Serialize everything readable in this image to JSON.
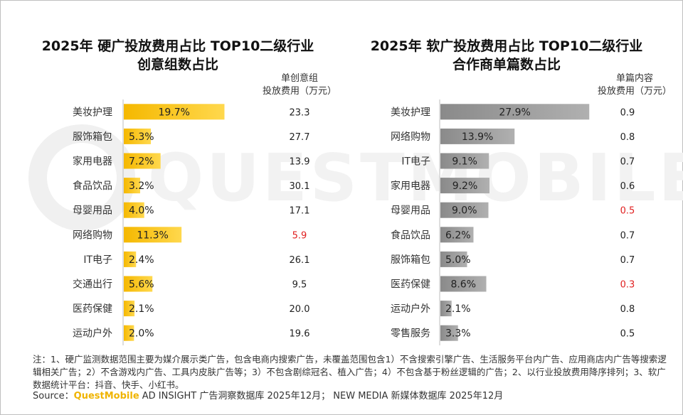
{
  "watermark": {
    "text": "QUESTMOBILE"
  },
  "left_panel": {
    "title_line1": "2025年 硬广投放费用占比 TOP10二级行业",
    "title_line2": "创意组数占比",
    "col_header_line1": "单创意组",
    "col_header_line2": "投放费用（万元）"
  },
  "right_panel": {
    "title_line1": "2025年 软广投放费用占比 TOP10二级行业",
    "title_line2": "合作商单篇数占比",
    "col_header_line1": "单篇内容",
    "col_header_line2": "投放费用（万元）"
  },
  "chart_data": [
    {
      "type": "bar",
      "orientation": "horizontal",
      "categories": [
        "美妆护理",
        "服饰箱包",
        "家用电器",
        "食品饮品",
        "母婴用品",
        "网络购物",
        "IT电子",
        "交通出行",
        "医药保健",
        "运动户外"
      ],
      "values": [
        19.7,
        5.3,
        7.2,
        3.2,
        4.0,
        11.3,
        2.4,
        5.6,
        2.1,
        2.0
      ],
      "value_labels": [
        "19.7%",
        "5.3%",
        "7.2%",
        "3.2%",
        "4.0%",
        "11.3%",
        "2.4%",
        "5.6%",
        "2.1%",
        "2.0%"
      ],
      "unit": "%",
      "xlim": [
        0,
        22
      ],
      "bar_color": "#f5b800",
      "side_values": [
        "23.3",
        "27.7",
        "13.9",
        "30.1",
        "17.1",
        "5.9",
        "26.1",
        "9.5",
        "20.0",
        "19.6"
      ],
      "side_highlight_index": [
        5
      ],
      "highlight_color": "#e02020"
    },
    {
      "type": "bar",
      "orientation": "horizontal",
      "categories": [
        "美妆护理",
        "网络购物",
        "IT电子",
        "家用电器",
        "母婴用品",
        "食品饮品",
        "服饰箱包",
        "医药保健",
        "运动户外",
        "零售服务"
      ],
      "values": [
        27.9,
        13.9,
        9.1,
        9.2,
        9.0,
        6.2,
        5.0,
        8.6,
        2.1,
        3.3
      ],
      "value_labels": [
        "27.9%",
        "13.9%",
        "9.1%",
        "9.2%",
        "9.0%",
        "6.2%",
        "5.0%",
        "8.6%",
        "2.1%",
        "3.3%"
      ],
      "unit": "%",
      "xlim": [
        0,
        30
      ],
      "bar_color": "#8a8a8a",
      "side_values": [
        "0.9",
        "0.8",
        "0.7",
        "0.6",
        "0.5",
        "0.7",
        "0.7",
        "0.3",
        "0.8",
        "0.5"
      ],
      "side_highlight_index": [
        4,
        7
      ],
      "highlight_color": "#e02020"
    }
  ],
  "footer": {
    "note": "注：1、硬广监测数据范围主要为媒介展示类广告，包含电商内搜索广告，未覆盖范围包含1）不含搜索引擎广告、生活服务平台内广告、应用商店内广告等搜索逻辑相关广告；2）不含游戏内广告、工具内皮肤广告等；3）不包含剧综冠名、植入广告；4）不包含基于粉丝逻辑的广告；2、以行业投放费用降序排列；3、软广数据统计平台：抖音、快手、小红书。",
    "source_prefix": "Source：",
    "source_brand": "QuestMobile",
    "source_rest": " AD INSIGHT 广告洞察数据库 2025年12月； NEW MEDIA 新媒体数据库 2025年12月"
  }
}
